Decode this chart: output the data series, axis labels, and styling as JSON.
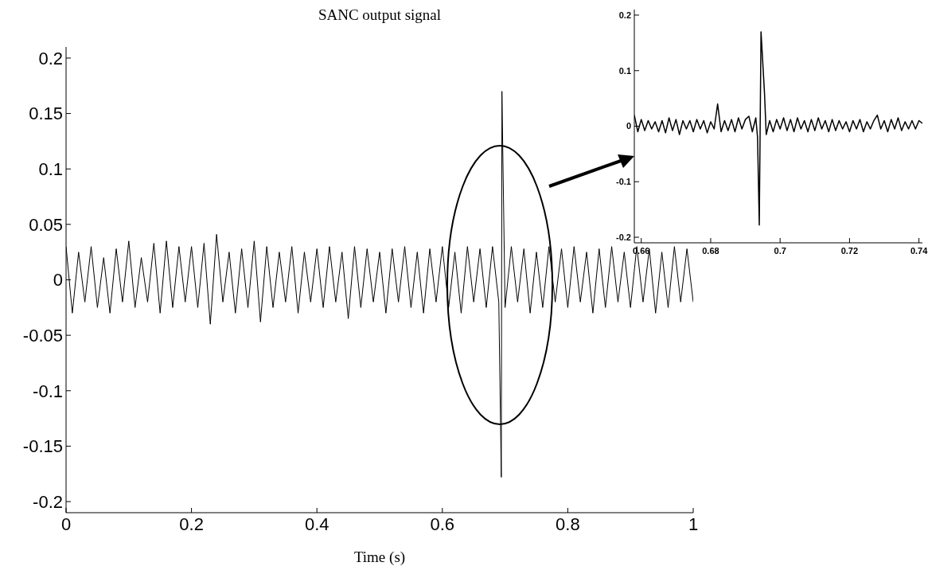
{
  "chart_data": [
    {
      "type": "line",
      "title": "SANC output signal",
      "xlabel": "Time (s)",
      "xlim": [
        0,
        1
      ],
      "xticks": [
        0,
        0.2,
        0.4,
        0.6,
        0.8,
        1
      ],
      "ylim": [
        -0.21,
        0.21
      ],
      "yticks": [
        -0.2,
        -0.15,
        -0.1,
        -0.05,
        0,
        0.05,
        0.1,
        0.15,
        0.2
      ],
      "x": [
        0,
        0.01,
        0.02,
        0.03,
        0.04,
        0.05,
        0.06,
        0.07,
        0.08,
        0.09,
        0.1,
        0.11,
        0.12,
        0.13,
        0.14,
        0.15,
        0.16,
        0.17,
        0.18,
        0.19,
        0.2,
        0.21,
        0.22,
        0.23,
        0.24,
        0.25,
        0.26,
        0.27,
        0.28,
        0.29,
        0.3,
        0.31,
        0.32,
        0.33,
        0.34,
        0.35,
        0.36,
        0.37,
        0.38,
        0.39,
        0.4,
        0.41,
        0.42,
        0.43,
        0.44,
        0.45,
        0.46,
        0.47,
        0.48,
        0.49,
        0.5,
        0.51,
        0.52,
        0.53,
        0.54,
        0.55,
        0.56,
        0.57,
        0.58,
        0.59,
        0.6,
        0.61,
        0.62,
        0.63,
        0.64,
        0.65,
        0.66,
        0.67,
        0.68,
        0.69,
        0.694,
        0.695,
        0.7,
        0.71,
        0.72,
        0.73,
        0.74,
        0.75,
        0.76,
        0.77,
        0.78,
        0.79,
        0.8,
        0.81,
        0.82,
        0.83,
        0.84,
        0.85,
        0.86,
        0.87,
        0.88,
        0.89,
        0.9,
        0.91,
        0.92,
        0.93,
        0.94,
        0.95,
        0.96,
        0.97,
        0.98,
        0.99,
        1
      ],
      "series": [
        {
          "color": "#000000",
          "values": [
            0.03,
            -0.03,
            0.025,
            -0.02,
            0.03,
            -0.025,
            0.02,
            -0.03,
            0.028,
            -0.02,
            0.035,
            -0.025,
            0.02,
            -0.02,
            0.033,
            -0.03,
            0.035,
            -0.025,
            0.03,
            -0.02,
            0.03,
            -0.025,
            0.033,
            -0.04,
            0.041,
            -0.02,
            0.025,
            -0.03,
            0.028,
            -0.025,
            0.035,
            -0.038,
            0.03,
            -0.025,
            0.025,
            -0.02,
            0.03,
            -0.03,
            0.025,
            -0.02,
            0.028,
            -0.025,
            0.03,
            -0.02,
            0.025,
            -0.035,
            0.03,
            -0.025,
            0.028,
            -0.02,
            0.025,
            -0.03,
            0.028,
            -0.02,
            0.03,
            -0.025,
            0.025,
            -0.03,
            0.028,
            -0.02,
            0.03,
            -0.025,
            0.025,
            -0.03,
            0.03,
            -0.02,
            0.028,
            -0.025,
            0.03,
            -0.02,
            -0.178,
            0.17,
            -0.025,
            0.03,
            -0.02,
            0.028,
            -0.03,
            0.025,
            -0.025,
            0.03,
            -0.02,
            0.028,
            -0.025,
            0.03,
            -0.02,
            0.025,
            -0.03,
            0.028,
            -0.025,
            0.03,
            -0.02,
            0.025,
            -0.025,
            0.03,
            -0.02,
            0.028,
            -0.03,
            0.025,
            -0.025,
            0.03,
            -0.02,
            0.028,
            -0.02
          ]
        }
      ]
    },
    {
      "type": "line",
      "xlim": [
        0.658,
        0.741
      ],
      "xticks": [
        0.66,
        0.68,
        0.7,
        0.72,
        0.74
      ],
      "ylim": [
        -0.21,
        0.21
      ],
      "yticks": [
        -0.2,
        -0.1,
        0,
        0.1,
        0.2
      ],
      "x": [
        0.658,
        0.659,
        0.66,
        0.661,
        0.662,
        0.663,
        0.664,
        0.665,
        0.666,
        0.667,
        0.668,
        0.669,
        0.67,
        0.671,
        0.672,
        0.673,
        0.674,
        0.675,
        0.676,
        0.677,
        0.678,
        0.679,
        0.68,
        0.681,
        0.682,
        0.683,
        0.684,
        0.685,
        0.686,
        0.687,
        0.688,
        0.689,
        0.69,
        0.691,
        0.692,
        0.693,
        0.6935,
        0.694,
        0.6945,
        0.6955,
        0.696,
        0.697,
        0.698,
        0.699,
        0.7,
        0.701,
        0.702,
        0.703,
        0.704,
        0.705,
        0.706,
        0.707,
        0.708,
        0.709,
        0.71,
        0.711,
        0.712,
        0.713,
        0.714,
        0.715,
        0.716,
        0.717,
        0.718,
        0.719,
        0.72,
        0.721,
        0.722,
        0.723,
        0.724,
        0.725,
        0.726,
        0.727,
        0.728,
        0.729,
        0.73,
        0.731,
        0.732,
        0.733,
        0.734,
        0.735,
        0.736,
        0.737,
        0.738,
        0.739,
        0.74,
        0.741
      ],
      "series": [
        {
          "color": "#000000",
          "values": [
            0.02,
            -0.01,
            0.012,
            -0.008,
            0.01,
            -0.005,
            0.008,
            -0.01,
            0.01,
            -0.012,
            0.015,
            -0.008,
            0.012,
            -0.015,
            0.01,
            -0.005,
            0.01,
            -0.01,
            0.012,
            -0.005,
            0.01,
            -0.012,
            0.008,
            -0.005,
            0.04,
            -0.01,
            0.01,
            -0.008,
            0.012,
            -0.01,
            0.015,
            -0.005,
            0.012,
            0.018,
            -0.01,
            0.015,
            -0.02,
            -0.178,
            0.17,
            0.06,
            -0.015,
            0.01,
            -0.01,
            0.012,
            -0.005,
            0.015,
            -0.008,
            0.012,
            -0.01,
            0.015,
            -0.005,
            0.01,
            -0.01,
            0.012,
            -0.008,
            0.015,
            -0.005,
            0.01,
            -0.01,
            0.012,
            -0.008,
            0.01,
            -0.005,
            0.008,
            -0.01,
            0.01,
            -0.005,
            0.012,
            -0.01,
            0.008,
            -0.005,
            0.01,
            0.02,
            -0.005,
            0.01,
            -0.01,
            0.012,
            -0.005,
            0.015,
            -0.008,
            0.008,
            -0.005,
            0.01,
            -0.005,
            0.01,
            0.005
          ]
        }
      ]
    }
  ]
}
